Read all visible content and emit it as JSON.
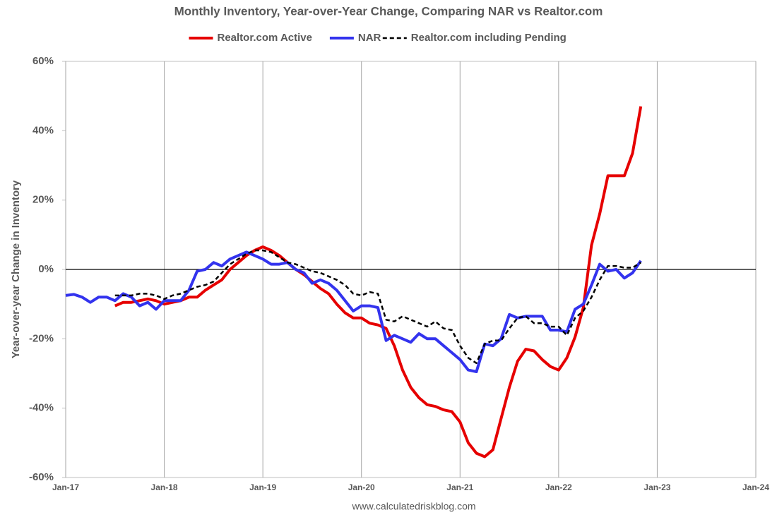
{
  "chart_data": {
    "type": "line",
    "title": "Monthly Inventory, Year-over-Year Change, Comparing NAR vs Realtor.com",
    "y_label": "Year-over-year Change in Inventory",
    "source": "www.calculatedriskblog.com",
    "x": [
      "Jan-17",
      "Feb-17",
      "Mar-17",
      "Apr-17",
      "May-17",
      "Jun-17",
      "Jul-17",
      "Aug-17",
      "Sep-17",
      "Oct-17",
      "Nov-17",
      "Dec-17",
      "Jan-18",
      "Feb-18",
      "Mar-18",
      "Apr-18",
      "May-18",
      "Jun-18",
      "Jul-18",
      "Aug-18",
      "Sep-18",
      "Oct-18",
      "Nov-18",
      "Dec-18",
      "Jan-19",
      "Feb-19",
      "Mar-19",
      "Apr-19",
      "May-19",
      "Jun-19",
      "Jul-19",
      "Aug-19",
      "Sep-19",
      "Oct-19",
      "Nov-19",
      "Dec-19",
      "Jan-20",
      "Feb-20",
      "Mar-20",
      "Apr-20",
      "May-20",
      "Jun-20",
      "Jul-20",
      "Aug-20",
      "Sep-20",
      "Oct-20",
      "Nov-20",
      "Dec-20",
      "Jan-21",
      "Feb-21",
      "Mar-21",
      "Apr-21",
      "May-21",
      "Jun-21",
      "Jul-21",
      "Aug-21",
      "Sep-21",
      "Oct-21",
      "Nov-21",
      "Dec-21",
      "Jan-22",
      "Feb-22",
      "Mar-22",
      "Apr-22",
      "May-22",
      "Jun-22",
      "Jul-22",
      "Aug-22",
      "Sep-22",
      "Oct-22",
      "Nov-22"
    ],
    "series": [
      {
        "name": "Realtor.com Active",
        "color": "#e60000",
        "dash": false,
        "width": 4,
        "values": [
          null,
          null,
          null,
          null,
          null,
          null,
          -10.5,
          -9.5,
          -9.5,
          -9,
          -8.5,
          -9,
          -10,
          -9.5,
          -9,
          -8,
          -8,
          -6,
          -4.5,
          -3,
          0,
          2,
          4,
          5.5,
          6.5,
          5.5,
          4,
          2,
          0,
          -1.5,
          -3.5,
          -5.5,
          -7,
          -10,
          -12.5,
          -14,
          -14,
          -15.5,
          -16,
          -17,
          -22,
          -29,
          -34,
          -37,
          -39,
          -39.5,
          -40.5,
          -41,
          -44,
          -50,
          -53,
          -54,
          -52,
          -43,
          -34,
          -26.5,
          -23,
          -23.5,
          -26,
          -28,
          -29,
          -25.5,
          -19.5,
          -11,
          7,
          16,
          27,
          27,
          27,
          33.5,
          47
        ]
      },
      {
        "name": "NAR",
        "color": "#3333ee",
        "dash": false,
        "width": 4,
        "values": [
          -7.5,
          -7.2,
          -8,
          -9.5,
          -8,
          -8,
          -9,
          -7,
          -8,
          -10.5,
          -9.5,
          -11.5,
          -9,
          -9,
          -9,
          -6,
          -0.5,
          0,
          2,
          1,
          3,
          4,
          5,
          4,
          3,
          1.5,
          1.5,
          2,
          0,
          -1,
          -4,
          -3,
          -4,
          -6,
          -9,
          -12,
          -10.5,
          -10.5,
          -11,
          -20.5,
          -19,
          -20,
          -21,
          -18.5,
          -20,
          -20,
          -22,
          -24,
          -26,
          -29,
          -29.5,
          -21.5,
          -22,
          -20,
          -13,
          -14,
          -13.5,
          -13.5,
          -13.5,
          -17.5,
          -17.5,
          -18,
          -11.5,
          -10,
          -4.5,
          1.5,
          -0.5,
          0,
          -2.5,
          -1,
          2.5
        ]
      },
      {
        "name": "Realtor.com including Pending",
        "color": "#000000",
        "dash": true,
        "width": 2.5,
        "values": [
          null,
          null,
          null,
          null,
          null,
          null,
          -7.5,
          -7.5,
          -7.5,
          -7,
          -7,
          -7.5,
          -8.5,
          -7.5,
          -7,
          -6,
          -5,
          -4.5,
          -3.5,
          -1,
          1.5,
          3,
          4.5,
          5.5,
          5.5,
          5,
          3.5,
          2,
          1.5,
          0.5,
          -0.5,
          -1,
          -2,
          -3,
          -4.5,
          -7,
          -7.5,
          -6.5,
          -7,
          -14.5,
          -15,
          -13.5,
          -14.5,
          -15.5,
          -16.5,
          -15,
          -17,
          -17.5,
          -22,
          -25.5,
          -27,
          -21.5,
          -20.5,
          -20.5,
          -17,
          -14,
          -13.5,
          -15.5,
          -15.5,
          -16.5,
          -16.5,
          -19,
          -14,
          -12,
          -8,
          -3,
          1,
          1,
          0.5,
          0.5,
          2
        ]
      }
    ],
    "xlim": [
      "Jan-17",
      "Jan-24"
    ],
    "xticks": [
      "Jan-17",
      "Jan-18",
      "Jan-19",
      "Jan-20",
      "Jan-21",
      "Jan-22",
      "Jan-23",
      "Jan-24"
    ],
    "ylim": [
      -60,
      60
    ],
    "yticks": [
      {
        "value": -60,
        "label": "-60%"
      },
      {
        "value": -40,
        "label": "-40%"
      },
      {
        "value": -20,
        "label": "-20%"
      },
      {
        "value": 0,
        "label": "0%"
      },
      {
        "value": 20,
        "label": "20%"
      },
      {
        "value": 40,
        "label": "40%"
      },
      {
        "value": 60,
        "label": "60%"
      }
    ],
    "grid": "x",
    "zero_line": true
  }
}
